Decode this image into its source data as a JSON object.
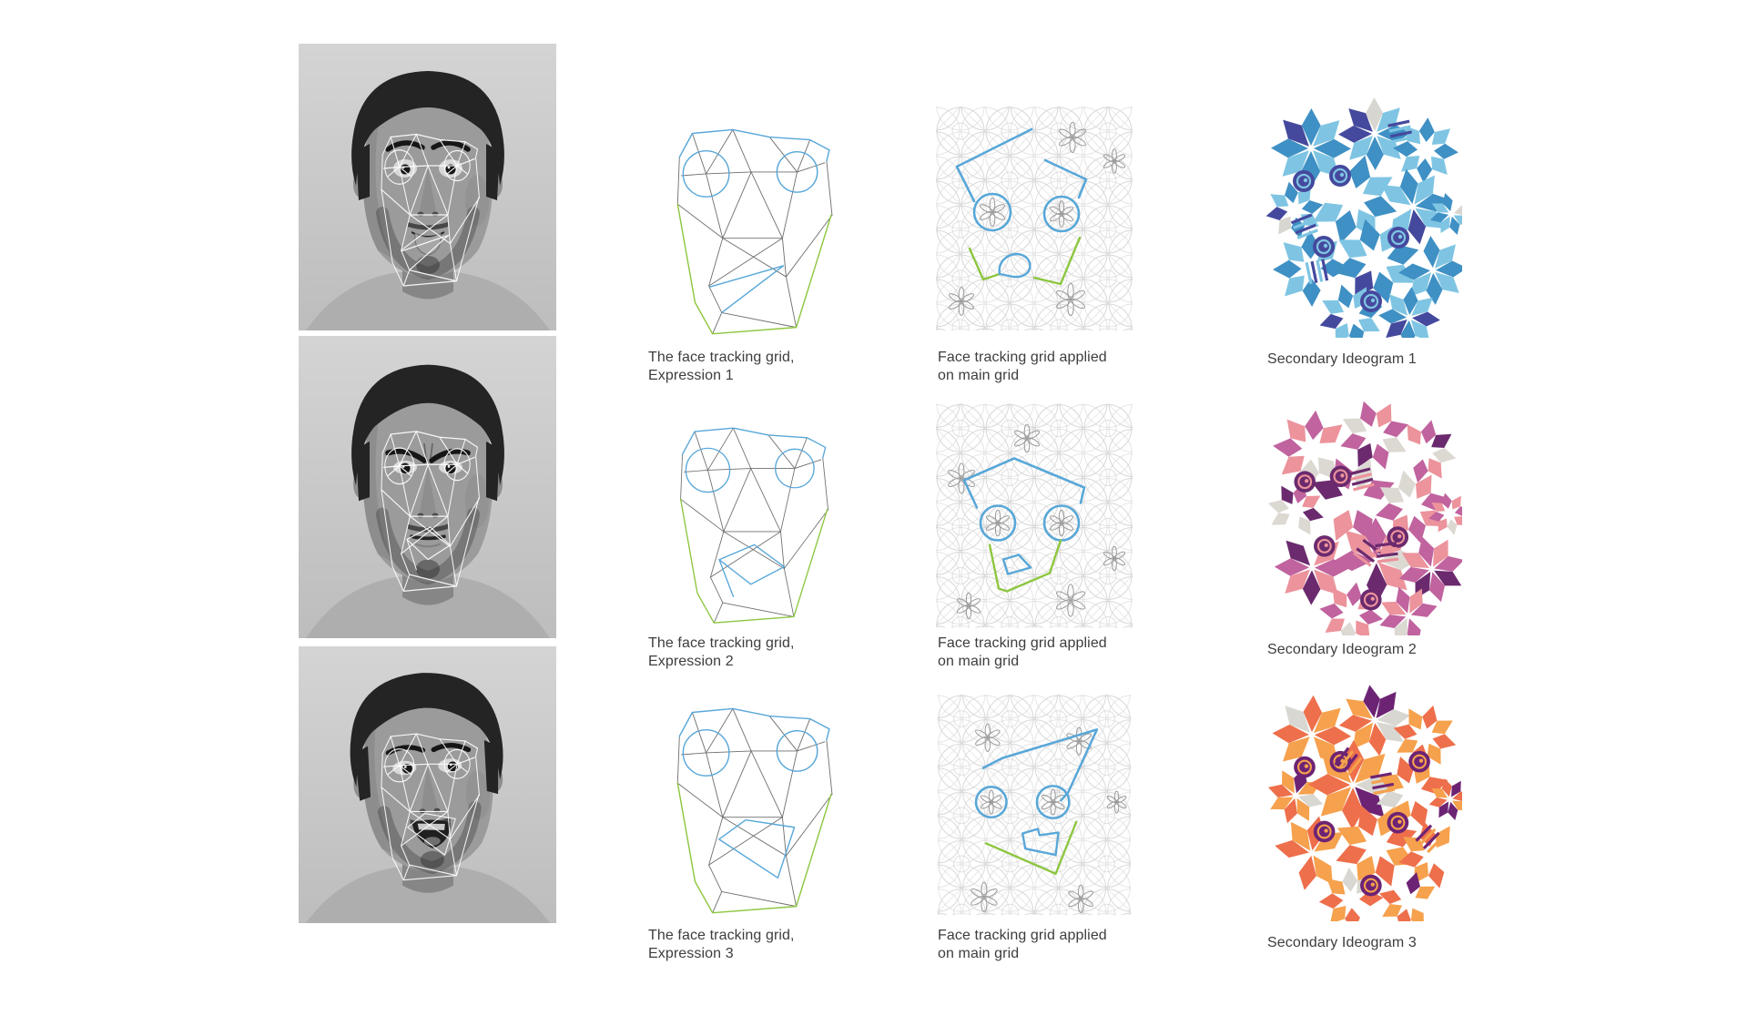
{
  "rows": [
    {
      "grid_caption": {
        "line1": "The face tracking grid,",
        "line2": "Expression 1"
      },
      "applied_caption": {
        "line1": "Face tracking grid applied",
        "line2": "on main grid"
      },
      "ideogram_caption": "Secondary Ideogram 1"
    },
    {
      "grid_caption": {
        "line1": "The face tracking grid,",
        "line2": "Expression 2"
      },
      "applied_caption": {
        "line1": "Face tracking grid applied",
        "line2": "on main grid"
      },
      "ideogram_caption": "Secondary Ideogram 2"
    },
    {
      "grid_caption": {
        "line1": "The face tracking grid,",
        "line2": "Expression 3"
      },
      "applied_caption": {
        "line1": "Face tracking grid applied",
        "line2": "on main grid"
      },
      "ideogram_caption": "Secondary Ideogram 3"
    }
  ],
  "colors": {
    "caption_text": "#3d3d3d",
    "grid_blue": "#58a7d8",
    "grid_green": "#8dc63f",
    "grid_gray": "#6f6f6f",
    "pattern_light": "#d7d7d7",
    "pattern_dark": "#9a9a9a",
    "photo_wall_light": "#d4d4d4",
    "photo_wall_dark": "#bdbdbd",
    "ideogram_palettes": [
      [
        "#45499d",
        "#3f90c4",
        "#7fc5e3",
        "#d7d6d0"
      ],
      [
        "#6b2a6e",
        "#c0639e",
        "#ec939c",
        "#dcd8d2"
      ],
      [
        "#6d2374",
        "#ee6f4b",
        "#f6a14d",
        "#d8d7d1"
      ]
    ]
  }
}
